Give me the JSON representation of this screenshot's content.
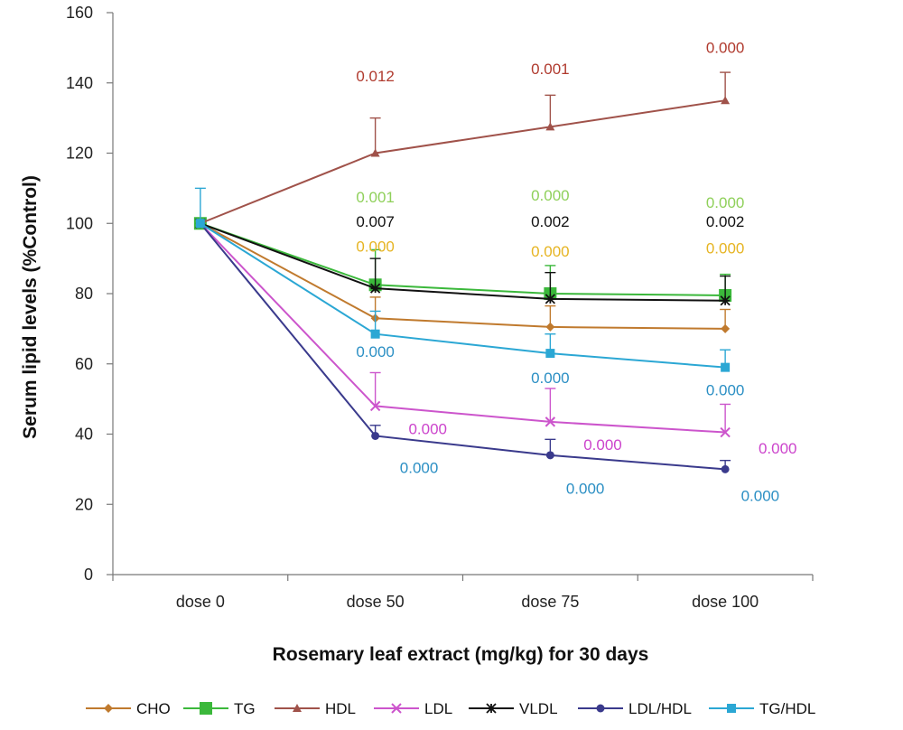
{
  "chart_data": {
    "type": "line",
    "title": "",
    "xlabel": "Rosemary  leaf extract (mg/kg)  for  30  days",
    "ylabel": "Serum lipid levels (%Control)",
    "categories": [
      "dose 0",
      "dose 50",
      "dose 75",
      "dose 100"
    ],
    "ylim": [
      0,
      160
    ],
    "yticks": [
      0,
      20,
      40,
      60,
      80,
      100,
      120,
      140,
      160
    ],
    "grid": false,
    "legend_position": "bottom",
    "series": [
      {
        "name": "CHO",
        "color": "#c07a2e",
        "marker": "diamond",
        "values": [
          100,
          73,
          70.5,
          70
        ],
        "errors": [
          0,
          6,
          6,
          5.5
        ]
      },
      {
        "name": "TG",
        "color": "#3bb83b",
        "marker": "square",
        "values": [
          100,
          82.5,
          80,
          79.5
        ],
        "errors": [
          0,
          10,
          8,
          6
        ]
      },
      {
        "name": "HDL",
        "color": "#a0524a",
        "marker": "triangle",
        "values": [
          100,
          120,
          127.5,
          135
        ],
        "errors": [
          0,
          10,
          9,
          8
        ]
      },
      {
        "name": "LDL",
        "color": "#cc55cc",
        "marker": "x",
        "values": [
          100,
          48,
          43.5,
          40.5
        ],
        "errors": [
          0,
          9.5,
          9.5,
          8
        ]
      },
      {
        "name": "VLDL",
        "color": "#111111",
        "marker": "star",
        "values": [
          100,
          81.5,
          78.5,
          78
        ],
        "errors": [
          0,
          8.5,
          7.5,
          7
        ]
      },
      {
        "name": "LDL/HDL",
        "color": "#3a3a8c",
        "marker": "circle",
        "values": [
          100,
          39.5,
          34,
          30
        ],
        "errors": [
          0,
          3,
          4.5,
          2.5
        ]
      },
      {
        "name": "TG/HDL",
        "color": "#2ba7d4",
        "marker": "square",
        "values": [
          100,
          68.5,
          63,
          59
        ],
        "errors": [
          10,
          6.5,
          5.5,
          5
        ]
      }
    ],
    "annotations": [
      {
        "text": "0.012",
        "color": "#b03a2e",
        "category": 1,
        "y": 140.5
      },
      {
        "text": "0.001",
        "color": "#b03a2e",
        "category": 2,
        "y": 142.5
      },
      {
        "text": "0.000",
        "color": "#b03a2e",
        "category": 3,
        "y": 148.5
      },
      {
        "text": "0.001",
        "color": "#8fd05a",
        "category": 1,
        "y": 106
      },
      {
        "text": "0.000",
        "color": "#8fd05a",
        "category": 2,
        "y": 106.5
      },
      {
        "text": "0.000",
        "color": "#8fd05a",
        "category": 3,
        "y": 104.5
      },
      {
        "text": "0.007",
        "color": "#111111",
        "category": 1,
        "y": 99
      },
      {
        "text": "0.002",
        "color": "#111111",
        "category": 2,
        "y": 99
      },
      {
        "text": "0.002",
        "color": "#111111",
        "category": 3,
        "y": 99
      },
      {
        "text": "0.000",
        "color": "#e6b422",
        "category": 1,
        "y": 92
      },
      {
        "text": "0.000",
        "color": "#e6b422",
        "category": 2,
        "y": 90.5
      },
      {
        "text": "0.000",
        "color": "#e6b422",
        "category": 3,
        "y": 91.5
      },
      {
        "text": "0.000",
        "color": "#2b8fc4",
        "category": 1,
        "y": 62
      },
      {
        "text": "0.000",
        "color": "#2b8fc4",
        "category": 2,
        "y": 54.5
      },
      {
        "text": "0.000",
        "color": "#2b8fc4",
        "category": 3,
        "y": 51
      },
      {
        "text": "0.000",
        "color": "#cc44cc",
        "category": 1.3,
        "y": 40
      },
      {
        "text": "0.000",
        "color": "#cc44cc",
        "category": 2.3,
        "y": 35.5
      },
      {
        "text": "0.000",
        "color": "#cc44cc",
        "category": 3.3,
        "y": 34.5
      },
      {
        "text": "0.000",
        "color": "#2b8fc4",
        "category": 1.25,
        "y": 29
      },
      {
        "text": "0.000",
        "color": "#2b8fc4",
        "category": 2.2,
        "y": 23
      },
      {
        "text": "0.000",
        "color": "#2b8fc4",
        "category": 3.2,
        "y": 21
      }
    ]
  }
}
